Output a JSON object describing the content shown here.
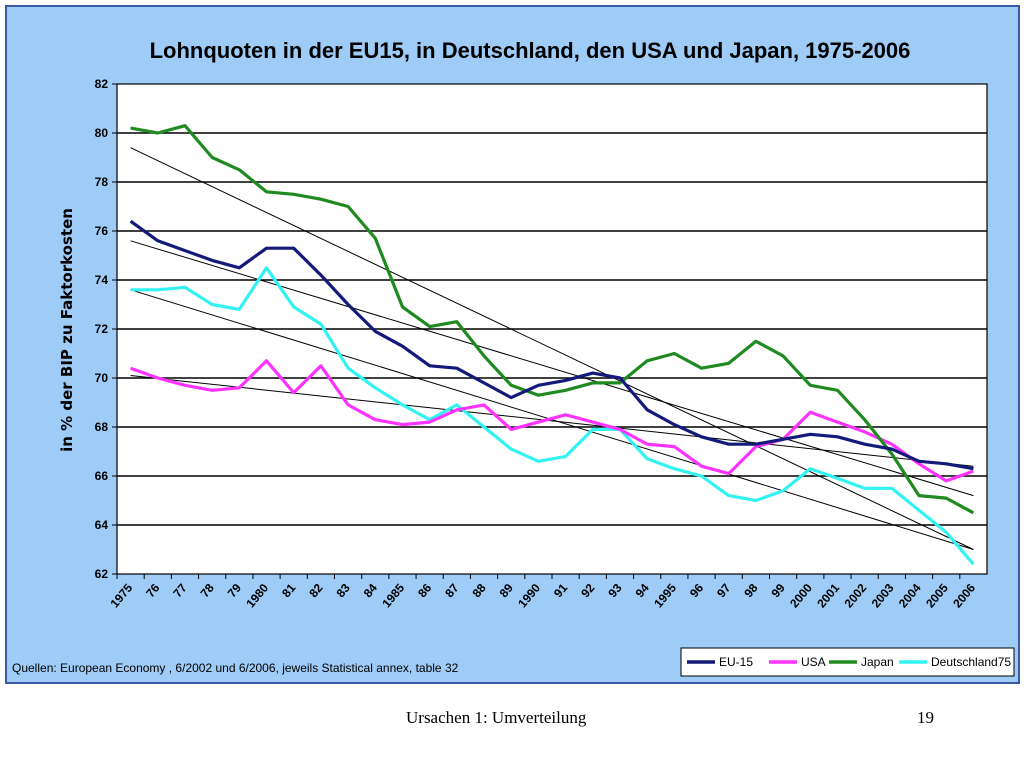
{
  "chart_data": {
    "type": "line",
    "title": "Lohnquoten in der EU15, in Deutschland, den USA und Japan, 1975-2006",
    "ylabel": "in % der BIP zu Faktorkosten",
    "ylim": [
      62,
      82
    ],
    "yticks": [
      62,
      64,
      66,
      68,
      70,
      72,
      74,
      76,
      78,
      80,
      82
    ],
    "grid": "horizontal",
    "legend_position": "bottom-right",
    "categories": [
      "1975",
      "76",
      "77",
      "78",
      "79",
      "1980",
      "81",
      "82",
      "83",
      "84",
      "1985",
      "86",
      "87",
      "88",
      "89",
      "1990",
      "91",
      "92",
      "93",
      "94",
      "1995",
      "96",
      "97",
      "98",
      "99",
      "2000",
      "2001",
      "2002",
      "2003",
      "2004",
      "2005",
      "2006"
    ],
    "series": [
      {
        "name": "EU-15",
        "color": "#141a7a",
        "values": [
          76.4,
          75.6,
          75.2,
          74.8,
          74.5,
          75.3,
          75.3,
          74.2,
          73.0,
          71.9,
          71.3,
          70.5,
          70.4,
          69.8,
          69.2,
          69.7,
          69.9,
          70.2,
          70.0,
          68.7,
          68.1,
          67.6,
          67.3,
          67.3,
          67.5,
          67.7,
          67.6,
          67.3,
          67.1,
          66.6,
          66.5,
          66.3
        ]
      },
      {
        "name": "USA",
        "color": "#ff33ff",
        "values": [
          70.4,
          70.0,
          69.7,
          69.5,
          69.6,
          70.7,
          69.4,
          70.5,
          68.9,
          68.3,
          68.1,
          68.2,
          68.7,
          68.9,
          67.9,
          68.2,
          68.5,
          68.2,
          67.9,
          67.3,
          67.2,
          66.4,
          66.1,
          67.2,
          67.5,
          68.6,
          68.2,
          67.8,
          67.3,
          66.5,
          65.8,
          66.2
        ]
      },
      {
        "name": "Japan",
        "color": "#1f8a1f",
        "values": [
          80.2,
          80.0,
          80.3,
          79.0,
          78.5,
          77.6,
          77.5,
          77.3,
          77.0,
          75.7,
          72.9,
          72.1,
          72.3,
          70.9,
          69.7,
          69.3,
          69.5,
          69.8,
          69.8,
          70.7,
          71.0,
          70.4,
          70.6,
          71.5,
          70.9,
          69.7,
          69.5,
          68.3,
          66.9,
          65.2,
          65.1,
          64.5
        ]
      },
      {
        "name": "Deutschland75",
        "color": "#33f2f2",
        "values": [
          73.6,
          73.6,
          73.7,
          73.0,
          72.8,
          74.5,
          72.9,
          72.2,
          70.4,
          69.6,
          68.9,
          68.3,
          68.9,
          68.0,
          67.1,
          66.6,
          66.8,
          67.9,
          67.9,
          66.7,
          66.3,
          66.0,
          65.2,
          65.0,
          65.4,
          66.3,
          65.9,
          65.5,
          65.5,
          64.6,
          63.7,
          62.4
        ]
      }
    ],
    "trendlines": [
      {
        "series": "Japan",
        "start": 79.4,
        "end": 63.0
      },
      {
        "series": "EU-15",
        "start": 75.6,
        "end": 65.2
      },
      {
        "series": "Deutschland75",
        "start": 73.6,
        "end": 63.0
      },
      {
        "series": "USA",
        "start": 70.1,
        "end": 66.4
      }
    ]
  },
  "source_note": "Quellen: European Economy , 6/2002 und 6/2006, jeweils Statistical annex, table 32",
  "footer": {
    "section": "Ursachen 1: Umverteilung",
    "page_number": "19"
  }
}
